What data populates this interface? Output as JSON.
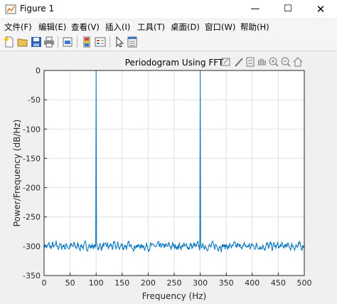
{
  "window": {
    "title": "Figure 1",
    "minimize": "—",
    "maximize": "☐",
    "close": "✕"
  },
  "menu": [
    "文件(F)",
    "编辑(E)",
    "查看(V)",
    "插入(I)",
    "工具(T)",
    "桌面(D)",
    "窗口(W)",
    "帮助(H)"
  ],
  "toolbar_icons": [
    "new-figure-icon",
    "open-file-icon",
    "save-icon",
    "print-icon",
    "link-plot-icon",
    "insert-colorbar-icon",
    "insert-legend-icon",
    "edit-plot-icon",
    "property-inspector-icon"
  ],
  "axes_toolbar_icons": [
    "data-tips-icon",
    "brush-icon",
    "export-icon",
    "pan-icon",
    "zoom-in-icon",
    "zoom-out-icon",
    "home-icon"
  ],
  "colors": {
    "line": "#0072bd",
    "grid": "#dfdfdf",
    "axes_bg": "#ffffff",
    "figure_bg": "#f0f0f0"
  },
  "chart_data": {
    "type": "line",
    "title": "Periodogram Using FFT",
    "xlabel": "Frequency (Hz)",
    "ylabel": "Power/Frequency (dB/Hz)",
    "xlim": [
      0,
      500
    ],
    "ylim": [
      -350,
      0
    ],
    "xticks": [
      0,
      50,
      100,
      150,
      200,
      250,
      300,
      350,
      400,
      450,
      500
    ],
    "yticks": [
      0,
      -50,
      -100,
      -150,
      -200,
      -250,
      -300,
      -350
    ],
    "grid": true,
    "series": [
      {
        "noise_floor": -300,
        "noise_range": [
          -315,
          -282
        ],
        "peaks": [
          {
            "x": 100,
            "y": 0
          },
          {
            "x": 300,
            "y": 0
          }
        ]
      }
    ]
  }
}
